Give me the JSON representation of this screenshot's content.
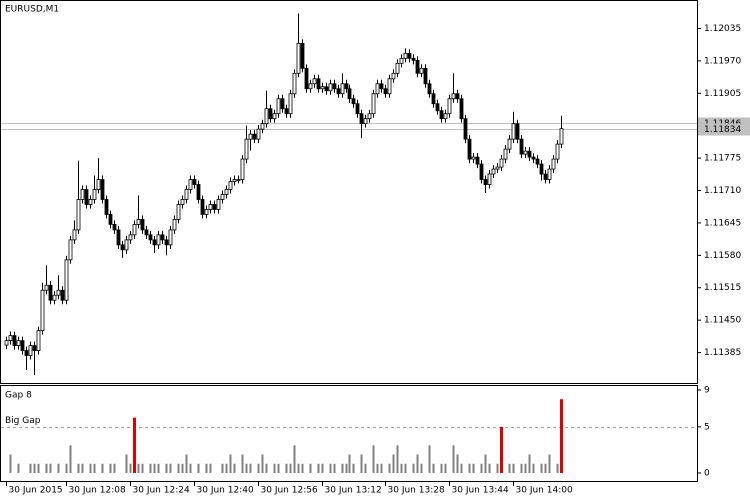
{
  "chart_data": [
    {
      "type": "candlestick",
      "title": "EURUSD,M1",
      "open": [
        1.114,
        1.11409,
        1.11419,
        1.11399,
        1.11409,
        1.11389,
        1.11379,
        1.11399,
        1.11389,
        1.11429,
        1.1151,
        1.1152,
        1.1149,
        1.115,
        1.1151,
        1.1149,
        1.11571,
        1.11611,
        1.11631,
        1.11692,
        1.11712,
        1.11682,
        1.11692,
        1.11712,
        1.11732,
        1.11692,
        1.11662,
        1.11642,
        1.11631,
        1.11601,
        1.11591,
        1.11611,
        1.11621,
        1.11642,
        1.11652,
        1.11631,
        1.11621,
        1.11611,
        1.11601,
        1.11621,
        1.11611,
        1.11601,
        1.11631,
        1.11652,
        1.11682,
        1.11692,
        1.11712,
        1.11732,
        1.11722,
        1.11692,
        1.11662,
        1.11672,
        1.11682,
        1.11672,
        1.11692,
        1.11702,
        1.11712,
        1.11728,
        1.11732,
        1.11732,
        1.11773,
        1.11813,
        1.11823,
        1.11813,
        1.11833,
        1.11844,
        1.11874,
        1.11854,
        1.11864,
        1.11894,
        1.11874,
        1.11864,
        1.11904,
        1.11945,
        1.12005,
        1.11955,
        1.11914,
        1.11924,
        1.11934,
        1.11914,
        1.11918,
        1.1191,
        1.11924,
        1.11914,
        1.11904,
        1.11924,
        1.11914,
        1.11894,
        1.11884,
        1.11864,
        1.11844,
        1.11854,
        1.11864,
        1.11904,
        1.11924,
        1.11914,
        1.11904,
        1.11934,
        1.11945,
        1.11965,
        1.11975,
        1.11985,
        1.11975,
        1.11971,
        1.11945,
        1.11955,
        1.11924,
        1.11904,
        1.11884,
        1.1187,
        1.11854,
        1.11864,
        1.11894,
        1.11904,
        1.11894,
        1.11854,
        1.11813,
        1.11773,
        1.11777,
        1.11763,
        1.11732,
        1.11722,
        1.11743,
        1.11753,
        1.11757,
        1.11773,
        1.11793,
        1.11813,
        1.11844,
        1.11813,
        1.11783,
        1.11789,
        1.11777,
        1.11773,
        1.11763,
        1.11743,
        1.11732,
        1.11753,
        1.11773,
        1.11803
      ],
      "high": [
        1.11417,
        1.11427,
        1.11427,
        1.11417,
        1.11417,
        1.11397,
        1.11407,
        1.11407,
        1.11437,
        1.11525,
        1.1156,
        1.11528,
        1.11508,
        1.1154,
        1.11518,
        1.11579,
        1.11619,
        1.1165,
        1.1177,
        1.1172,
        1.1172,
        1.117,
        1.1174,
        1.11775,
        1.1174,
        1.117,
        1.1167,
        1.1165,
        1.11639,
        1.11609,
        1.11619,
        1.11629,
        1.1165,
        1.117,
        1.1166,
        1.11639,
        1.11629,
        1.11619,
        1.11629,
        1.11629,
        1.11619,
        1.11639,
        1.1166,
        1.1169,
        1.117,
        1.1172,
        1.1174,
        1.1174,
        1.1173,
        1.117,
        1.1168,
        1.1169,
        1.1169,
        1.117,
        1.1171,
        1.1172,
        1.11736,
        1.1174,
        1.1174,
        1.11781,
        1.1184,
        1.11831,
        1.11831,
        1.11841,
        1.11852,
        1.1191,
        1.11882,
        1.11872,
        1.11902,
        1.11902,
        1.11882,
        1.11912,
        1.11953,
        1.12065,
        1.12013,
        1.11963,
        1.11932,
        1.11942,
        1.11942,
        1.11926,
        1.11926,
        1.11932,
        1.11932,
        1.11922,
        1.11945,
        1.11932,
        1.11922,
        1.11902,
        1.11892,
        1.11872,
        1.11862,
        1.11872,
        1.11912,
        1.11932,
        1.11932,
        1.11922,
        1.11942,
        1.11953,
        1.11973,
        1.11983,
        1.11995,
        1.11993,
        1.11983,
        1.11979,
        1.11963,
        1.11963,
        1.11932,
        1.11912,
        1.11892,
        1.11878,
        1.11872,
        1.11902,
        1.11945,
        1.11912,
        1.11902,
        1.11862,
        1.11821,
        1.11785,
        1.11785,
        1.11771,
        1.1174,
        1.11751,
        1.11761,
        1.11765,
        1.11781,
        1.11801,
        1.11821,
        1.11868,
        1.11852,
        1.11821,
        1.11797,
        1.11797,
        1.11785,
        1.11781,
        1.11771,
        1.11751,
        1.11761,
        1.11781,
        1.11811,
        1.1186
      ],
      "low": [
        1.11392,
        1.11401,
        1.11391,
        1.11391,
        1.11381,
        1.1135,
        1.11371,
        1.1134,
        1.11381,
        1.11421,
        1.11502,
        1.11482,
        1.11482,
        1.11492,
        1.11482,
        1.11482,
        1.11563,
        1.11603,
        1.11623,
        1.11684,
        1.11674,
        1.11674,
        1.11684,
        1.11704,
        1.11684,
        1.11654,
        1.11634,
        1.11623,
        1.11593,
        1.11575,
        1.11583,
        1.11603,
        1.11613,
        1.11634,
        1.11623,
        1.11613,
        1.11603,
        1.11585,
        1.11593,
        1.11603,
        1.1158,
        1.11593,
        1.11623,
        1.11644,
        1.11674,
        1.11684,
        1.11704,
        1.11714,
        1.11684,
        1.11654,
        1.11654,
        1.11664,
        1.11664,
        1.11664,
        1.11684,
        1.11694,
        1.11704,
        1.1172,
        1.11724,
        1.11724,
        1.11765,
        1.1179,
        1.11805,
        1.11805,
        1.11825,
        1.11836,
        1.11846,
        1.11846,
        1.11856,
        1.11866,
        1.11856,
        1.11856,
        1.11896,
        1.11937,
        1.11947,
        1.11906,
        1.11906,
        1.11916,
        1.11906,
        1.11906,
        1.11902,
        1.11902,
        1.11906,
        1.11896,
        1.11896,
        1.11906,
        1.11886,
        1.11876,
        1.11856,
        1.11815,
        1.11836,
        1.11846,
        1.11856,
        1.11896,
        1.11906,
        1.11896,
        1.11896,
        1.11926,
        1.11937,
        1.11957,
        1.11967,
        1.11967,
        1.11963,
        1.11937,
        1.11937,
        1.11916,
        1.11896,
        1.11876,
        1.11862,
        1.11846,
        1.11846,
        1.11856,
        1.11886,
        1.11886,
        1.11846,
        1.11805,
        1.11765,
        1.11765,
        1.11755,
        1.11724,
        1.11705,
        1.11714,
        1.11735,
        1.11745,
        1.11749,
        1.11765,
        1.11785,
        1.11805,
        1.11805,
        1.11775,
        1.11775,
        1.11769,
        1.11765,
        1.11755,
        1.1173,
        1.11724,
        1.11724,
        1.11745,
        1.11765,
        1.11795
      ],
      "close": [
        1.11409,
        1.11419,
        1.11399,
        1.11409,
        1.11389,
        1.11379,
        1.11399,
        1.11389,
        1.11429,
        1.1151,
        1.1152,
        1.1149,
        1.115,
        1.1151,
        1.1149,
        1.11571,
        1.11611,
        1.11631,
        1.11692,
        1.11712,
        1.11682,
        1.11692,
        1.11712,
        1.11732,
        1.11692,
        1.11662,
        1.11642,
        1.11631,
        1.11601,
        1.11591,
        1.11611,
        1.11621,
        1.11642,
        1.11652,
        1.11631,
        1.11621,
        1.11611,
        1.11601,
        1.11621,
        1.11611,
        1.11601,
        1.11631,
        1.11652,
        1.11682,
        1.11692,
        1.11712,
        1.11732,
        1.11722,
        1.11692,
        1.11662,
        1.11672,
        1.11682,
        1.11672,
        1.11692,
        1.11702,
        1.11712,
        1.11728,
        1.11732,
        1.11732,
        1.11773,
        1.11813,
        1.11823,
        1.11813,
        1.11833,
        1.11844,
        1.11874,
        1.11854,
        1.11864,
        1.11894,
        1.11874,
        1.11864,
        1.11904,
        1.11945,
        1.12005,
        1.11955,
        1.11914,
        1.11924,
        1.11934,
        1.11914,
        1.11918,
        1.1191,
        1.11924,
        1.11914,
        1.11904,
        1.11924,
        1.11914,
        1.11894,
        1.11884,
        1.11864,
        1.11844,
        1.11854,
        1.11864,
        1.11904,
        1.11924,
        1.11914,
        1.11904,
        1.11934,
        1.11945,
        1.11965,
        1.11975,
        1.11985,
        1.11975,
        1.11971,
        1.11945,
        1.11955,
        1.11924,
        1.11904,
        1.11884,
        1.1187,
        1.11854,
        1.11864,
        1.11894,
        1.11904,
        1.11894,
        1.11854,
        1.11813,
        1.11773,
        1.11777,
        1.11763,
        1.11732,
        1.11722,
        1.11743,
        1.11753,
        1.11757,
        1.11773,
        1.11793,
        1.11813,
        1.11844,
        1.11813,
        1.11783,
        1.11789,
        1.11777,
        1.11773,
        1.11763,
        1.11743,
        1.11732,
        1.11753,
        1.11773,
        1.11803,
        1.11834
      ],
      "up_color": "#ffffff",
      "down_color": "#000000",
      "line_color": "#000000",
      "xlim": [
        -1.25,
        173
      ],
      "xticks": [
        {
          "value": 0,
          "label": "30 Jun 2015"
        },
        {
          "value": 15,
          "label": "30 Jun 12:08"
        },
        {
          "value": 31,
          "label": "30 Jun 12:24"
        },
        {
          "value": 47,
          "label": "30 Jun 12:40"
        },
        {
          "value": 63,
          "label": "30 Jun 12:56"
        },
        {
          "value": 79,
          "label": "30 Jun 13:12"
        },
        {
          "value": 95,
          "label": "30 Jun 13:28"
        },
        {
          "value": 111,
          "label": "30 Jun 13:44"
        },
        {
          "value": 127,
          "label": "30 Jun 14:00"
        }
      ],
      "ylim": [
        1.11324,
        1.1209
      ],
      "yticks": [
        1.11385,
        {
          "value": 1.1145,
          "label": "1.11450"
        },
        1.11515,
        {
          "value": 1.1158,
          "label": "1.11580"
        },
        1.11645,
        {
          "value": 1.1171,
          "label": "1.11710"
        },
        1.11775,
        1.11905,
        {
          "value": 1.1197,
          "label": "1.11970"
        },
        1.12035
      ],
      "price_lines": [
        1.11846,
        1.11834
      ],
      "price_line_color": "#c0c0c0"
    },
    {
      "type": "bar",
      "title": "Gap 8",
      "values": [
        0,
        2,
        0,
        1,
        0,
        0,
        1,
        1,
        1,
        0,
        1,
        1,
        0,
        1,
        0,
        1,
        3,
        0,
        1,
        1,
        0,
        1,
        1,
        0,
        1,
        0,
        1,
        1,
        0,
        0,
        2,
        1,
        6,
        1,
        1,
        0,
        1,
        1,
        1,
        0,
        1,
        1,
        0,
        1,
        1,
        2,
        1,
        0,
        1,
        0,
        1,
        1,
        0,
        0,
        1,
        1,
        2,
        1,
        0,
        2,
        1,
        1,
        0,
        1,
        2,
        1,
        0,
        1,
        1,
        0,
        1,
        1,
        3,
        1,
        1,
        0,
        1,
        0,
        1,
        1,
        0,
        1,
        1,
        0,
        1,
        1,
        2,
        1,
        0,
        2,
        1,
        0,
        3,
        1,
        1,
        0,
        1,
        2,
        3,
        1,
        1,
        0,
        1,
        2,
        1,
        0,
        3,
        1,
        0,
        1,
        1,
        0,
        3,
        2,
        1,
        0,
        1,
        1,
        0,
        1,
        2,
        1,
        0,
        1,
        5,
        0,
        1,
        1,
        0,
        1,
        1,
        2,
        1,
        0,
        1,
        1,
        2,
        0,
        1,
        8
      ],
      "color": "#808080",
      "highlight_color": "#e00000",
      "level": {
        "value": 5,
        "label": "Big Gap"
      },
      "xlim": [
        -1.25,
        173
      ],
      "ylim": [
        -0.87,
        9.43
      ],
      "yticks": [
        0,
        5,
        9
      ]
    }
  ]
}
